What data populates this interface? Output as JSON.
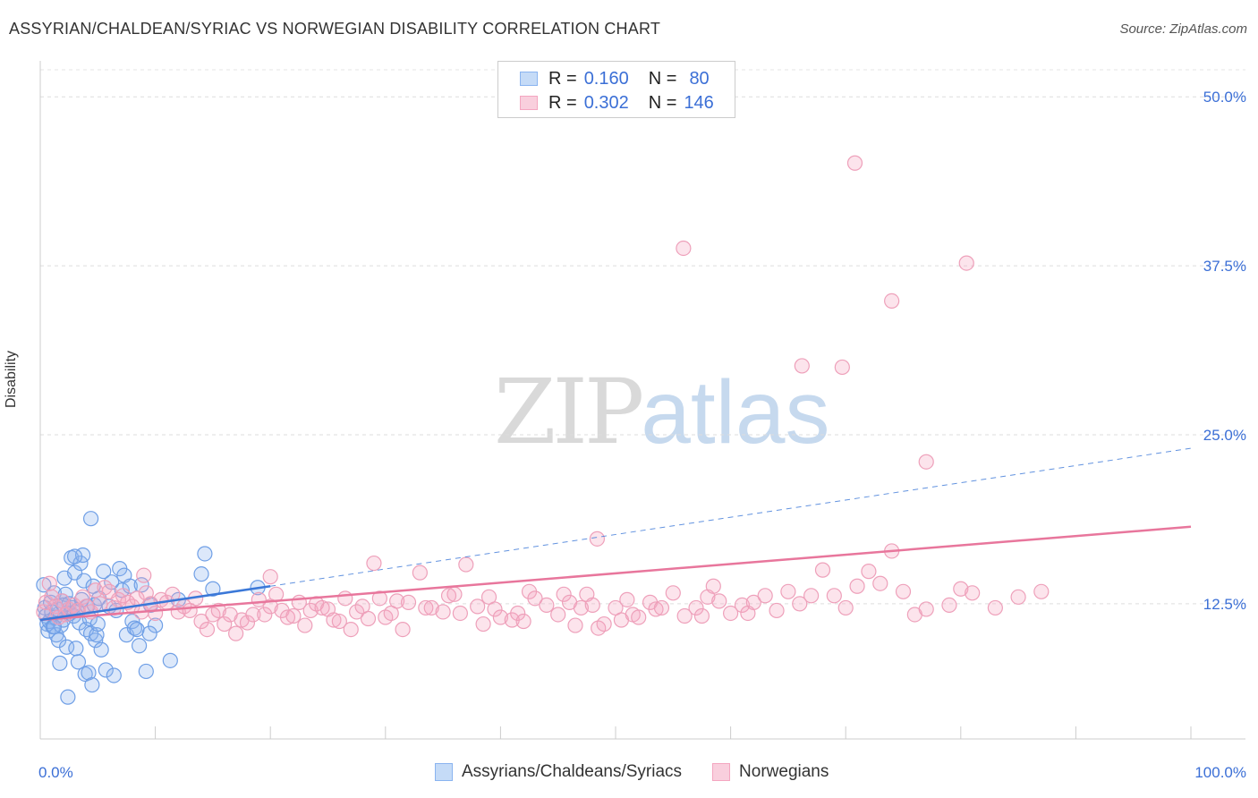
{
  "title": "ASSYRIAN/CHALDEAN/SYRIAC VS NORWEGIAN DISABILITY CORRELATION CHART",
  "source": "Source: ZipAtlas.com",
  "watermark": {
    "zip": "ZIP",
    "atlas": "atlas"
  },
  "legend_top": {
    "rows": [
      {
        "r_label": "R =",
        "r_value": "0.160",
        "n_label": "N =",
        "n_value": "80",
        "color": "#8ab4f0"
      },
      {
        "r_label": "R =",
        "r_value": "0.302",
        "n_label": "N =",
        "n_value": "146",
        "color": "#f4a6c0"
      }
    ]
  },
  "legend_bottom": {
    "items": [
      {
        "label": "Assyrians/Chaldeans/Syriacs",
        "color": "#8ab4f0"
      },
      {
        "label": "Norwegians",
        "color": "#f4a6c0"
      }
    ]
  },
  "chart_data": {
    "type": "scatter",
    "title": "ASSYRIAN/CHALDEAN/SYRIAC VS NORWEGIAN DISABILITY CORRELATION CHART",
    "xlabel": "",
    "ylabel": "Disability",
    "xlim": [
      0,
      100
    ],
    "ylim": [
      2.5,
      52
    ],
    "x_tick_labels": [
      "0.0%",
      "100.0%"
    ],
    "y_ticks": [
      12.5,
      25.0,
      37.5,
      50.0
    ],
    "y_tick_labels": [
      "12.5%",
      "25.0%",
      "37.5%",
      "50.0%"
    ],
    "grid": "horizontal dashed",
    "legend_position": "top-center",
    "colors": {
      "assyrian": "#3b78d8",
      "norwegian": "#e8769c",
      "tick_label": "#3b6fd6"
    },
    "series": [
      {
        "name": "Assyrians/Chaldeans/Syriacs",
        "r": 0.16,
        "n": 80,
        "trend": {
          "x": [
            0,
            20
          ],
          "y": [
            11.3,
            13.8
          ],
          "dashed_extension": {
            "x": [
              20,
              100
            ],
            "y": [
              13.8,
              24.0
            ]
          }
        },
        "points": [
          [
            0.3,
            13.9
          ],
          [
            0.4,
            12.2
          ],
          [
            0.5,
            11.6
          ],
          [
            0.6,
            11.0
          ],
          [
            0.7,
            10.5
          ],
          [
            0.8,
            11.2
          ],
          [
            0.9,
            12.6
          ],
          [
            1.0,
            11.9
          ],
          [
            1.1,
            10.8
          ],
          [
            1.2,
            13.3
          ],
          [
            1.3,
            11.5
          ],
          [
            1.4,
            10.2
          ],
          [
            1.5,
            12.1
          ],
          [
            1.6,
            9.8
          ],
          [
            1.7,
            8.1
          ],
          [
            1.8,
            10.9
          ],
          [
            1.9,
            12.7
          ],
          [
            2.0,
            11.3
          ],
          [
            2.1,
            14.4
          ],
          [
            2.2,
            13.2
          ],
          [
            2.3,
            9.3
          ],
          [
            2.4,
            5.6
          ],
          [
            2.5,
            12.5
          ],
          [
            2.6,
            11.8
          ],
          [
            2.7,
            15.9
          ],
          [
            2.8,
            12.2
          ],
          [
            2.9,
            11.6
          ],
          [
            3.0,
            14.8
          ],
          [
            3.1,
            9.2
          ],
          [
            3.2,
            12.0
          ],
          [
            3.3,
            8.2
          ],
          [
            3.4,
            11.1
          ],
          [
            3.5,
            15.5
          ],
          [
            3.6,
            12.8
          ],
          [
            3.7,
            16.1
          ],
          [
            3.8,
            14.2
          ],
          [
            3.9,
            7.3
          ],
          [
            4.0,
            10.6
          ],
          [
            4.1,
            12.3
          ],
          [
            4.2,
            7.4
          ],
          [
            4.3,
            11.4
          ],
          [
            4.4,
            10.3
          ],
          [
            4.5,
            6.5
          ],
          [
            4.6,
            13.8
          ],
          [
            4.7,
            12.4
          ],
          [
            4.8,
            9.8
          ],
          [
            4.9,
            10.2
          ],
          [
            5.0,
            11.0
          ],
          [
            5.1,
            12.9
          ],
          [
            5.3,
            9.1
          ],
          [
            5.5,
            14.9
          ],
          [
            5.7,
            7.6
          ],
          [
            6.0,
            12.3
          ],
          [
            6.2,
            14.1
          ],
          [
            6.4,
            7.2
          ],
          [
            6.6,
            12.0
          ],
          [
            6.9,
            15.1
          ],
          [
            7.1,
            13.5
          ],
          [
            7.3,
            14.6
          ],
          [
            7.5,
            10.2
          ],
          [
            7.8,
            13.8
          ],
          [
            8.0,
            11.2
          ],
          [
            8.2,
            10.7
          ],
          [
            8.4,
            10.6
          ],
          [
            8.6,
            9.4
          ],
          [
            8.8,
            13.9
          ],
          [
            9.2,
            7.5
          ],
          [
            9.6,
            12.4
          ],
          [
            10.0,
            10.9
          ],
          [
            12.0,
            12.8
          ],
          [
            11.3,
            8.3
          ],
          [
            14.0,
            14.7
          ],
          [
            14.3,
            16.2
          ],
          [
            15.0,
            13.6
          ],
          [
            18.9,
            13.7
          ],
          [
            4.4,
            18.8
          ],
          [
            3.0,
            16.0
          ],
          [
            9.5,
            10.3
          ],
          [
            1.2,
            10.8
          ],
          [
            2.0,
            12.4
          ]
        ]
      },
      {
        "name": "Norwegians",
        "r": 0.302,
        "n": 146,
        "trend": {
          "x": [
            0,
            100
          ],
          "y": [
            11.3,
            18.2
          ]
        },
        "points": [
          [
            0.3,
            11.9
          ],
          [
            0.5,
            12.6
          ],
          [
            0.8,
            14.0
          ],
          [
            1.0,
            13.0
          ],
          [
            1.3,
            12.3
          ],
          [
            1.6,
            11.5
          ],
          [
            1.9,
            12.7
          ],
          [
            2.2,
            11.7
          ],
          [
            2.5,
            12.1
          ],
          [
            2.9,
            12.4
          ],
          [
            3.3,
            12.0
          ],
          [
            3.7,
            13.0
          ],
          [
            4.0,
            12.3
          ],
          [
            4.4,
            11.9
          ],
          [
            4.8,
            13.5
          ],
          [
            5.2,
            12.5
          ],
          [
            5.6,
            13.7
          ],
          [
            6.0,
            13.4
          ],
          [
            6.4,
            12.2
          ],
          [
            6.8,
            12.8
          ],
          [
            7.2,
            13.1
          ],
          [
            7.6,
            12.6
          ],
          [
            8.0,
            12.3
          ],
          [
            8.4,
            12.9
          ],
          [
            8.8,
            11.9
          ],
          [
            9.2,
            13.3
          ],
          [
            9.6,
            12.5
          ],
          [
            10.0,
            11.8
          ],
          [
            10.5,
            12.8
          ],
          [
            11.0,
            12.6
          ],
          [
            11.5,
            13.2
          ],
          [
            12.0,
            11.9
          ],
          [
            12.5,
            12.3
          ],
          [
            13.0,
            12.0
          ],
          [
            13.5,
            12.9
          ],
          [
            14.0,
            11.2
          ],
          [
            14.5,
            10.6
          ],
          [
            15.0,
            11.7
          ],
          [
            15.5,
            12.0
          ],
          [
            16.0,
            11.0
          ],
          [
            16.5,
            11.7
          ],
          [
            17.0,
            10.3
          ],
          [
            17.5,
            11.3
          ],
          [
            18.0,
            11.1
          ],
          [
            18.5,
            11.7
          ],
          [
            19.0,
            12.8
          ],
          [
            19.5,
            11.7
          ],
          [
            20.0,
            12.3
          ],
          [
            20.5,
            13.2
          ],
          [
            21.0,
            12.0
          ],
          [
            21.5,
            11.5
          ],
          [
            22.0,
            11.6
          ],
          [
            22.5,
            12.6
          ],
          [
            23.0,
            10.9
          ],
          [
            23.5,
            12.0
          ],
          [
            24.0,
            12.5
          ],
          [
            24.5,
            12.2
          ],
          [
            25.0,
            12.1
          ],
          [
            25.5,
            11.3
          ],
          [
            26.0,
            11.2
          ],
          [
            26.5,
            12.9
          ],
          [
            27.0,
            10.6
          ],
          [
            27.5,
            11.9
          ],
          [
            28.0,
            12.3
          ],
          [
            28.5,
            11.4
          ],
          [
            29.0,
            15.5
          ],
          [
            29.5,
            12.9
          ],
          [
            30.0,
            11.5
          ],
          [
            30.5,
            11.8
          ],
          [
            31.0,
            12.7
          ],
          [
            31.5,
            10.6
          ],
          [
            32.0,
            12.6
          ],
          [
            33.0,
            14.8
          ],
          [
            33.5,
            12.2
          ],
          [
            34.0,
            12.2
          ],
          [
            35.0,
            11.9
          ],
          [
            35.5,
            13.1
          ],
          [
            36.0,
            13.2
          ],
          [
            36.5,
            11.8
          ],
          [
            37.0,
            15.4
          ],
          [
            38.0,
            12.3
          ],
          [
            38.5,
            11.0
          ],
          [
            39.0,
            13.0
          ],
          [
            39.5,
            12.1
          ],
          [
            40.0,
            11.5
          ],
          [
            41.0,
            11.3
          ],
          [
            41.5,
            11.8
          ],
          [
            42.0,
            11.2
          ],
          [
            42.5,
            13.4
          ],
          [
            43.0,
            12.9
          ],
          [
            44.0,
            12.4
          ],
          [
            45.0,
            11.7
          ],
          [
            45.5,
            13.2
          ],
          [
            46.0,
            12.6
          ],
          [
            46.5,
            10.9
          ],
          [
            47.0,
            12.2
          ],
          [
            47.5,
            13.2
          ],
          [
            48.0,
            12.4
          ],
          [
            48.5,
            10.7
          ],
          [
            49.0,
            11.0
          ],
          [
            50.0,
            12.2
          ],
          [
            50.5,
            11.3
          ],
          [
            51.0,
            12.8
          ],
          [
            51.5,
            11.7
          ],
          [
            52.0,
            11.5
          ],
          [
            53.0,
            12.6
          ],
          [
            53.5,
            12.1
          ],
          [
            54.0,
            12.2
          ],
          [
            55.0,
            13.3
          ],
          [
            56.0,
            11.6
          ],
          [
            57.0,
            12.2
          ],
          [
            57.5,
            11.6
          ],
          [
            58.0,
            13.0
          ],
          [
            58.5,
            13.8
          ],
          [
            59.0,
            12.7
          ],
          [
            60.0,
            11.8
          ],
          [
            61.0,
            12.4
          ],
          [
            61.5,
            11.8
          ],
          [
            62.0,
            12.6
          ],
          [
            63.0,
            13.1
          ],
          [
            64.0,
            12.0
          ],
          [
            65.0,
            13.4
          ],
          [
            66.0,
            12.5
          ],
          [
            67.0,
            13.1
          ],
          [
            68.0,
            15.0
          ],
          [
            69.0,
            13.1
          ],
          [
            70.0,
            12.2
          ],
          [
            71.0,
            13.8
          ],
          [
            72.0,
            14.9
          ],
          [
            73.0,
            14.0
          ],
          [
            74.0,
            16.4
          ],
          [
            75.0,
            13.4
          ],
          [
            76.0,
            11.7
          ],
          [
            77.0,
            12.1
          ],
          [
            79.0,
            12.4
          ],
          [
            80.0,
            13.6
          ],
          [
            81.0,
            13.3
          ],
          [
            83.0,
            12.2
          ],
          [
            85.0,
            13.0
          ],
          [
            87.0,
            13.4
          ],
          [
            9.0,
            14.6
          ],
          [
            20.0,
            14.5
          ],
          [
            55.9,
            38.8
          ],
          [
            70.8,
            45.1
          ],
          [
            80.5,
            37.7
          ],
          [
            74.0,
            34.9
          ],
          [
            66.2,
            30.1
          ],
          [
            69.7,
            30.0
          ],
          [
            77.0,
            23.0
          ],
          [
            48.4,
            17.3
          ]
        ]
      }
    ]
  }
}
